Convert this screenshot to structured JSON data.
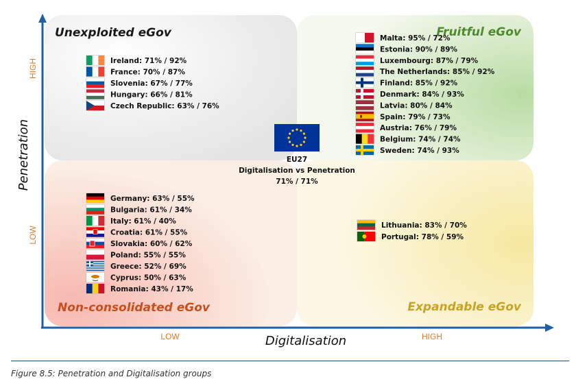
{
  "caption": "Figure 8.5: Penetration and Digitalisation groups",
  "chart_data": {
    "type": "scatter",
    "title": "",
    "xlabel": "Digitalisation",
    "ylabel": "Penetration",
    "x_levels": [
      "LOW",
      "HIGH"
    ],
    "y_levels": [
      "LOW",
      "HIGH"
    ],
    "quadrants": [
      {
        "key": "top-left",
        "title": "Unexploited eGov",
        "color": "#1a1a1a",
        "entries": [
          {
            "country": "Ireland",
            "label": "Ireland: 71% / 92%",
            "digitalisation": 71,
            "penetration": 92
          },
          {
            "country": "France",
            "label": "France: 70% / 87%",
            "digitalisation": 70,
            "penetration": 87
          },
          {
            "country": "Slovenia",
            "label": "Slovenia: 67% / 77%",
            "digitalisation": 67,
            "penetration": 77
          },
          {
            "country": "Hungary",
            "label": "Hungary: 66% / 81%",
            "digitalisation": 66,
            "penetration": 81
          },
          {
            "country": "Czech Republic",
            "label": "Czech Republic: 63% / 76%",
            "digitalisation": 63,
            "penetration": 76
          }
        ]
      },
      {
        "key": "top-right",
        "title": "Fruitful eGov",
        "color": "#4e8a2e",
        "entries": [
          {
            "country": "Malta",
            "label": "Malta: 95% / 72%",
            "digitalisation": 95,
            "penetration": 72
          },
          {
            "country": "Estonia",
            "label": "Estonia: 90% / 89%",
            "digitalisation": 90,
            "penetration": 89
          },
          {
            "country": "Luxembourg",
            "label": "Luxembourg: 87% / 79%",
            "digitalisation": 87,
            "penetration": 79
          },
          {
            "country": "The Netherlands",
            "label": "The Netherlands: 85% / 92%",
            "digitalisation": 85,
            "penetration": 92
          },
          {
            "country": "Finland",
            "label": "Finland: 85% / 92%",
            "digitalisation": 85,
            "penetration": 92
          },
          {
            "country": "Denmark",
            "label": "Denmark: 84% / 93%",
            "digitalisation": 84,
            "penetration": 93
          },
          {
            "country": "Latvia",
            "label": "Latvia: 80% / 84%",
            "digitalisation": 80,
            "penetration": 84
          },
          {
            "country": "Spain",
            "label": "Spain: 79% / 73%",
            "digitalisation": 79,
            "penetration": 73
          },
          {
            "country": "Austria",
            "label": "Austria: 76% / 79%",
            "digitalisation": 76,
            "penetration": 79
          },
          {
            "country": "Belgium",
            "label": "Belgium: 74% / 74%",
            "digitalisation": 74,
            "penetration": 74
          },
          {
            "country": "Sweden",
            "label": "Sweden: 74% / 93%",
            "digitalisation": 74,
            "penetration": 93
          }
        ]
      },
      {
        "key": "bottom-left",
        "title": "Non-consolidated eGov",
        "color": "#c8501e",
        "entries": [
          {
            "country": "Germany",
            "label": "Germany: 63% / 55%",
            "digitalisation": 63,
            "penetration": 55
          },
          {
            "country": "Bulgaria",
            "label": "Bulgaria: 61% / 34%",
            "digitalisation": 61,
            "penetration": 34
          },
          {
            "country": "Italy",
            "label": "Italy: 61% / 40%",
            "digitalisation": 61,
            "penetration": 40
          },
          {
            "country": "Croatia",
            "label": "Croatia: 61% / 55%",
            "digitalisation": 61,
            "penetration": 55
          },
          {
            "country": "Slovakia",
            "label": "Slovakia: 60% / 62%",
            "digitalisation": 60,
            "penetration": 62
          },
          {
            "country": "Poland",
            "label": "Poland: 55% / 55%",
            "digitalisation": 55,
            "penetration": 55
          },
          {
            "country": "Greece",
            "label": "Greece: 52% / 69%",
            "digitalisation": 52,
            "penetration": 69
          },
          {
            "country": "Cyprus",
            "label": "Cyprus: 50% / 63%",
            "digitalisation": 50,
            "penetration": 63
          },
          {
            "country": "Romania",
            "label": "Romania: 43% / 17%",
            "digitalisation": 43,
            "penetration": 17
          }
        ]
      },
      {
        "key": "bottom-right",
        "title": "Expandable eGov",
        "color": "#c9a227",
        "entries": [
          {
            "country": "Lithuania",
            "label": "Lithuania: 83% / 70%",
            "digitalisation": 83,
            "penetration": 70
          },
          {
            "country": "Portugal",
            "label": "Portugal: 78% / 59%",
            "digitalisation": 78,
            "penetration": 59
          }
        ]
      }
    ],
    "center": {
      "code": "EU27",
      "label": "Digitalisation vs Penetration",
      "value_label": "71% / 71%",
      "digitalisation": 71,
      "penetration": 71
    },
    "colors": {
      "axis": "#1f5fa8",
      "level_text": "#e07c24",
      "eu_blue": "#003399",
      "eu_gold": "#ffcc00"
    }
  }
}
